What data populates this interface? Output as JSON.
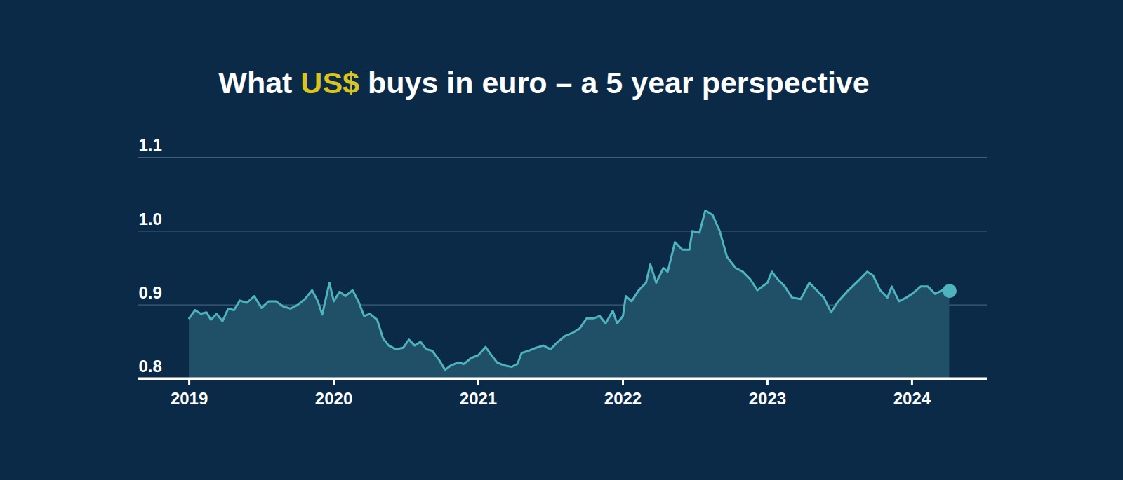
{
  "chart_data": {
    "type": "area",
    "title": "What US$ buys in euro – a 5 year perspective",
    "x": [
      2019.0,
      2019.04,
      2019.08,
      2019.12,
      2019.15,
      2019.19,
      2019.23,
      2019.27,
      2019.31,
      2019.35,
      2019.4,
      2019.45,
      2019.5,
      2019.55,
      2019.6,
      2019.65,
      2019.7,
      2019.75,
      2019.8,
      2019.85,
      2019.89,
      2019.92,
      2019.97,
      2020.0,
      2020.04,
      2020.08,
      2020.13,
      2020.17,
      2020.21,
      2020.25,
      2020.3,
      2020.34,
      2020.38,
      2020.43,
      2020.48,
      2020.52,
      2020.56,
      2020.6,
      2020.64,
      2020.68,
      2020.73,
      2020.77,
      2020.81,
      2020.86,
      2020.9,
      2020.95,
      2021.0,
      2021.05,
      2021.09,
      2021.13,
      2021.18,
      2021.23,
      2021.27,
      2021.3,
      2021.35,
      2021.4,
      2021.45,
      2021.5,
      2021.55,
      2021.6,
      2021.65,
      2021.7,
      2021.75,
      2021.8,
      2021.84,
      2021.88,
      2021.93,
      2021.96,
      2022.0,
      2022.02,
      2022.06,
      2022.11,
      2022.16,
      2022.19,
      2022.23,
      2022.28,
      2022.31,
      2022.36,
      2022.41,
      2022.46,
      2022.48,
      2022.53,
      2022.57,
      2022.62,
      2022.67,
      2022.72,
      2022.78,
      2022.83,
      2022.88,
      2022.93,
      2023.0,
      2023.03,
      2023.07,
      2023.12,
      2023.17,
      2023.23,
      2023.29,
      2023.34,
      2023.39,
      2023.44,
      2023.49,
      2023.56,
      2023.64,
      2023.69,
      2023.73,
      2023.78,
      2023.83,
      2023.86,
      2023.91,
      2023.96,
      2024.0,
      2024.06,
      2024.11,
      2024.16,
      2024.21,
      2024.26
    ],
    "values": [
      0.882,
      0.893,
      0.888,
      0.89,
      0.88,
      0.888,
      0.878,
      0.895,
      0.893,
      0.906,
      0.903,
      0.912,
      0.896,
      0.905,
      0.905,
      0.898,
      0.895,
      0.9,
      0.908,
      0.92,
      0.905,
      0.887,
      0.93,
      0.905,
      0.918,
      0.912,
      0.92,
      0.905,
      0.885,
      0.888,
      0.88,
      0.855,
      0.845,
      0.84,
      0.842,
      0.853,
      0.845,
      0.85,
      0.84,
      0.838,
      0.825,
      0.812,
      0.818,
      0.822,
      0.82,
      0.828,
      0.832,
      0.843,
      0.832,
      0.822,
      0.818,
      0.816,
      0.82,
      0.835,
      0.838,
      0.842,
      0.845,
      0.84,
      0.85,
      0.858,
      0.862,
      0.868,
      0.882,
      0.882,
      0.885,
      0.875,
      0.892,
      0.875,
      0.885,
      0.912,
      0.905,
      0.92,
      0.93,
      0.955,
      0.93,
      0.95,
      0.945,
      0.985,
      0.975,
      0.975,
      1.0,
      0.998,
      1.028,
      1.022,
      1.0,
      0.965,
      0.95,
      0.945,
      0.935,
      0.92,
      0.93,
      0.945,
      0.935,
      0.925,
      0.91,
      0.908,
      0.93,
      0.92,
      0.91,
      0.89,
      0.905,
      0.92,
      0.935,
      0.945,
      0.94,
      0.92,
      0.91,
      0.925,
      0.905,
      0.91,
      0.915,
      0.925,
      0.925,
      0.915,
      0.92,
      0.919
    ],
    "color": "#4fb3bf",
    "marker": "end",
    "xlim": [
      2018.65,
      2024.52
    ],
    "xticks": [
      2019,
      2020,
      2021,
      2022,
      2023,
      2024
    ],
    "ylim": [
      0.8,
      1.1
    ],
    "yticks": [
      0.8,
      0.9,
      {
        "value": 1,
        "label": "1.0"
      },
      1.1
    ],
    "grid": true
  }
}
